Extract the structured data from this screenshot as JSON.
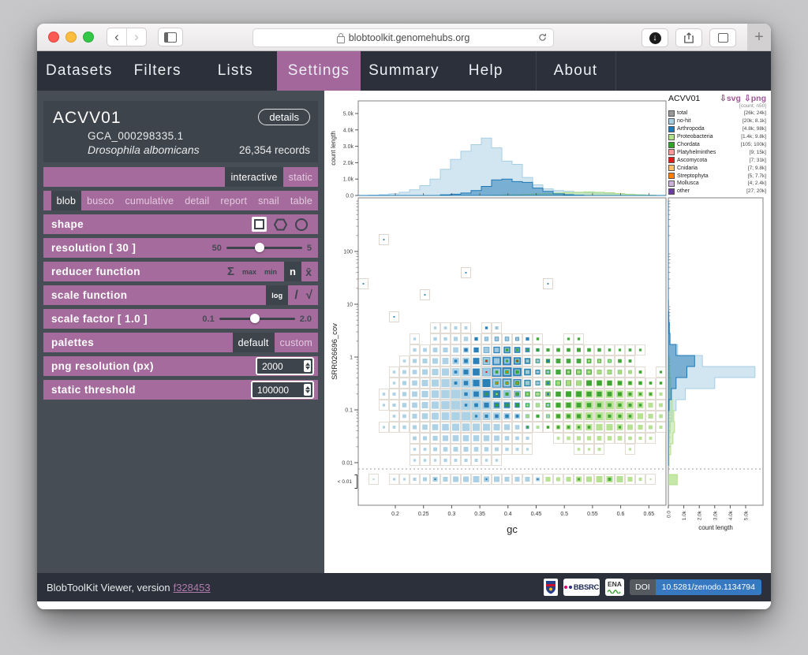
{
  "browser": {
    "url": "blobtoolkit.genomehubs.org",
    "back": "‹",
    "forward": "›",
    "new_tab": "+",
    "download_arrow": "↓"
  },
  "nav": {
    "items": [
      {
        "label": "Datasets",
        "active": false
      },
      {
        "label": "Filters",
        "active": false
      },
      {
        "label": "Lists",
        "active": false
      },
      {
        "label": "Settings",
        "active": true
      },
      {
        "label": "Summary",
        "active": false
      },
      {
        "label": "Help",
        "active": false
      },
      {
        "label": "About",
        "active": false
      }
    ],
    "accent": "#a4679c"
  },
  "sidebar": {
    "dataset": {
      "id": "ACVV01",
      "details_label": "details",
      "accession": "GCA_000298335.1",
      "species": "Drosophila albomicans",
      "records": "26,354 records"
    },
    "modes": [
      {
        "label": "interactive",
        "active": true
      },
      {
        "label": "static",
        "active": false
      }
    ],
    "views": [
      {
        "label": "blob",
        "active": true
      },
      {
        "label": "busco",
        "active": false
      },
      {
        "label": "cumulative",
        "active": false
      },
      {
        "label": "detail",
        "active": false
      },
      {
        "label": "report",
        "active": false
      },
      {
        "label": "snail",
        "active": false
      },
      {
        "label": "table",
        "active": false
      }
    ],
    "controls": {
      "shape": {
        "label": "shape"
      },
      "resolution": {
        "label": "resolution [ 30 ]",
        "min": "50",
        "max": "5",
        "thumb_pct": 44
      },
      "reducer": {
        "label": "reducer function",
        "sum": "Σ",
        "max": "max",
        "min": "min",
        "n": "n",
        "mean": "x̄"
      },
      "scale_function": {
        "label": "scale function",
        "log": "log",
        "linear": "/",
        "sqrt": "√"
      },
      "scale_factor": {
        "label": "scale factor [ 1.0 ]",
        "min": "0.1",
        "max": "2.0",
        "thumb_pct": 47
      },
      "palettes": {
        "label": "palettes",
        "default": "default",
        "custom": "custom"
      },
      "png_resolution": {
        "label": "png resolution (px)",
        "value": "2000"
      },
      "static_threshold": {
        "label": "static threshold",
        "value": "100000"
      }
    }
  },
  "legend": {
    "title": "ACVV01",
    "svg_link": "⇩svg",
    "png_link": "⇩png",
    "columns_note": "[count; n50]",
    "items": [
      {
        "name": "total",
        "values": "[26k; 24k]",
        "color": "#999999"
      },
      {
        "name": "no-hit",
        "values": "[20k; 8.1k]",
        "color": "#a6cee3"
      },
      {
        "name": "Arthropoda",
        "values": "[4.8k; 98k]",
        "color": "#1f78b4"
      },
      {
        "name": "Proteobacteria",
        "values": "[1.4k; 9.8k]",
        "color": "#b2df8a"
      },
      {
        "name": "Chordata",
        "values": "[105; 100k]",
        "color": "#33a02c"
      },
      {
        "name": "Platyhelminthes",
        "values": "[9; 15k]",
        "color": "#fb9a99"
      },
      {
        "name": "Ascomycota",
        "values": "[7; 31k]",
        "color": "#e31a1c"
      },
      {
        "name": "Cnidaria",
        "values": "[7; 9.8k]",
        "color": "#fdbf6f"
      },
      {
        "name": "Streptophyta",
        "values": "[5; 7.7k]",
        "color": "#ff7f00"
      },
      {
        "name": "Mollusca",
        "values": "[4; 2.4k]",
        "color": "#cab2d6"
      },
      {
        "name": "other",
        "values": "[27; 20k]",
        "color": "#6a3d9a"
      }
    ]
  },
  "chart_data": {
    "type": "blob-plot-with-marginal-histograms",
    "palette": {
      "no-hit": "#a6cee3",
      "Arthropoda": "#1f78b4",
      "Proteobacteria": "#b2df8a",
      "Chordata": "#33a02c",
      "Ascomycota": "#e31a1c",
      "Streptophyta": "#ff7f00",
      "Cnidaria": "#fdbf6f",
      "other": "#6a3d9a"
    },
    "gc_axis": {
      "label": "gc",
      "ticks": [
        0.2,
        0.25,
        0.3,
        0.35,
        0.4,
        0.45,
        0.5,
        0.55,
        0.6,
        0.65
      ],
      "range": [
        0.143,
        0.68
      ]
    },
    "cov_axis": {
      "label": "SRR026696_cov",
      "ticks": [
        {
          "label": "100",
          "ly": 2
        },
        {
          "label": "10",
          "ly": 1
        },
        {
          "label": "1",
          "ly": 0
        },
        {
          "label": "0.1",
          "ly": -1
        },
        {
          "label": "0.01",
          "ly": -2
        }
      ],
      "underflow_label": "< 0.01"
    },
    "count_axis": {
      "label": "count length",
      "ticks": [
        "0.0",
        "1.0k",
        "2.0k",
        "3.0k",
        "4.0k",
        "5.0k"
      ]
    },
    "top_histogram": {
      "type": "histogram",
      "units": "k",
      "series": [
        {
          "cat": "no-hit",
          "values": [
            0,
            0.02,
            0.05,
            0.1,
            0.2,
            0.35,
            0.6,
            1.0,
            1.6,
            2.2,
            2.7,
            3.1,
            3.5,
            2.9,
            2.1,
            1.9,
            1.1,
            0.65,
            0.4,
            0.3,
            0.25,
            0.2,
            0.18,
            0.15,
            0.12,
            0.1,
            0.08,
            0.05,
            0.02,
            0
          ]
        },
        {
          "cat": "Proteobacteria",
          "values": [
            0,
            0,
            0,
            0,
            0,
            0,
            0,
            0,
            0,
            0,
            0,
            0,
            0,
            0.02,
            0.04,
            0.05,
            0.08,
            0.1,
            0.12,
            0.15,
            0.18,
            0.2,
            0.22,
            0.2,
            0.17,
            0.12,
            0.07,
            0.04,
            0.02,
            0
          ]
        },
        {
          "cat": "Arthropoda",
          "values": [
            0,
            0,
            0,
            0,
            0,
            0,
            0,
            0,
            0.04,
            0.08,
            0.15,
            0.3,
            0.55,
            0.95,
            1.0,
            0.85,
            0.8,
            0.45,
            0.25,
            0.1,
            0.05,
            0.02,
            0,
            0,
            0,
            0,
            0,
            0,
            0,
            0
          ]
        }
      ]
    },
    "right_histogram": {
      "type": "histogram",
      "orientation": "horizontal",
      "units": "k",
      "series": [
        {
          "cat": "no-hit",
          "values": [
            0,
            0,
            0,
            0,
            0,
            0,
            0,
            0,
            0,
            0.02,
            0.05,
            0.08,
            0.12,
            0.6,
            2.2,
            5.6,
            3.0,
            1.1,
            0.5,
            0.25,
            0.12,
            0.05,
            0.02,
            0
          ]
        },
        {
          "cat": "Proteobacteria",
          "values": [
            0,
            0,
            0,
            0,
            0,
            0,
            0,
            0,
            0,
            0,
            0,
            0,
            0,
            0,
            0.05,
            0.1,
            0.15,
            0.2,
            0.25,
            0.35,
            0.4,
            0.3,
            0.15,
            0.05
          ]
        },
        {
          "cat": "Arthropoda",
          "values": [
            0,
            0,
            0,
            0,
            0,
            0,
            0,
            0,
            0,
            0,
            0.02,
            0.06,
            0.1,
            0.5,
            1.7,
            1.2,
            0.5,
            0.2,
            0.05,
            0,
            0,
            0,
            0,
            0
          ]
        }
      ],
      "underflow_green": 0.55
    },
    "blob": {
      "type": "blob-grid",
      "resolution": 30,
      "seed": 7,
      "clusters": [
        {
          "cat": "no-hit",
          "gc": 0.33,
          "sgc": 0.085,
          "cov_log": -0.75,
          "s": 0.8,
          "amp": 1.0
        },
        {
          "cat": "Arthropoda",
          "gc": 0.39,
          "sgc": 0.05,
          "cov_log": -0.33,
          "s": 0.52,
          "amp": 1.05
        },
        {
          "cat": "Proteobacteria",
          "gc": 0.565,
          "sgc": 0.08,
          "cov_log": -0.95,
          "s": 0.5,
          "amp": 0.8
        },
        {
          "cat": "Chordata",
          "gc": 0.51,
          "sgc": 0.11,
          "cov_log": -0.5,
          "s": 0.68,
          "amp": 0.3
        }
      ],
      "outlier_rate": 0.032,
      "accents": [
        "#b2df8a",
        "#ff7f00",
        "#e31a1c",
        "#fdbf6f"
      ]
    },
    "underflow_strip": {
      "sizes": [
        0,
        2,
        0,
        3,
        3,
        4,
        5,
        6,
        6,
        7,
        7,
        8,
        7,
        7,
        6,
        6,
        6,
        5,
        6,
        5,
        6,
        7,
        7,
        8,
        8,
        8,
        6,
        4,
        2,
        0
      ],
      "blue_green_split_gc": 0.465
    }
  },
  "footer": {
    "text": "BlobToolKit Viewer, version",
    "version_link": "f328453",
    "bbsrc": "BBSRC",
    "ena": "ENA",
    "doi_label": "DOI",
    "doi_value": "10.5281/zenodo.1134794"
  }
}
